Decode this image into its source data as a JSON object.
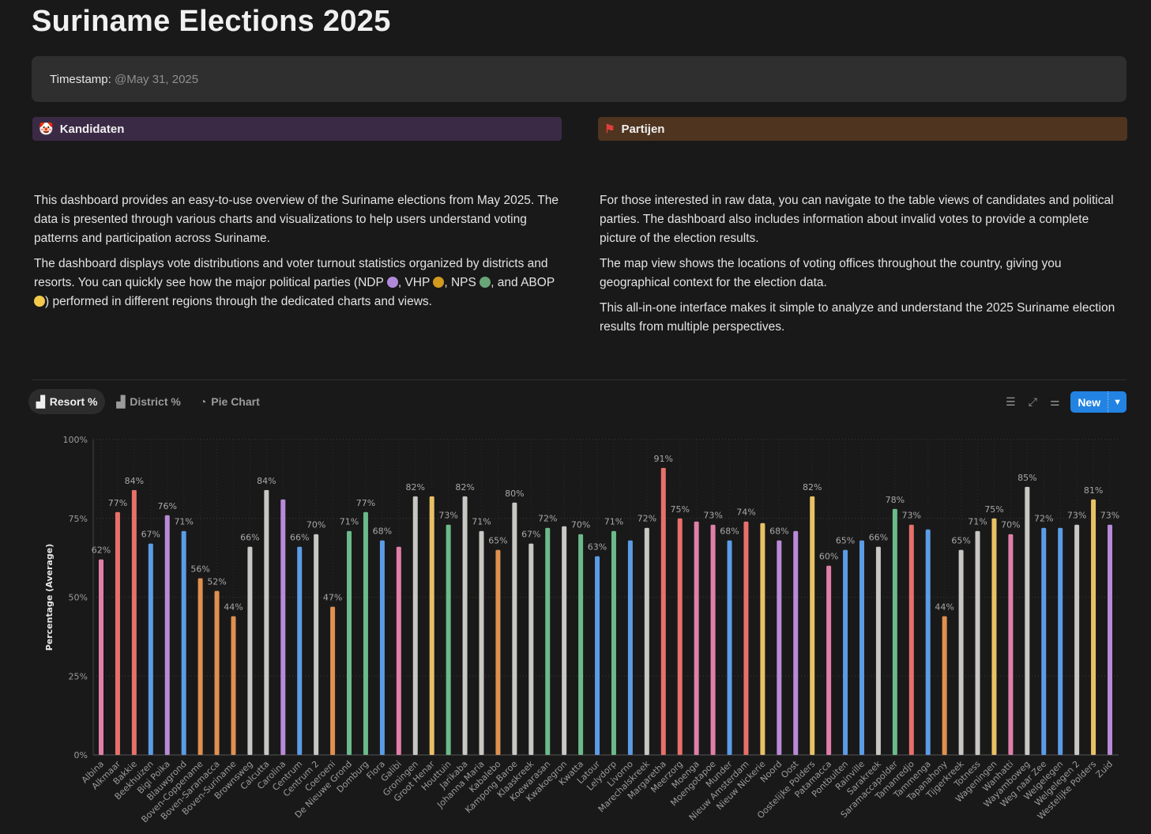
{
  "page": {
    "title": "Suriname Elections 2025"
  },
  "callout": {
    "label": "Timestamp:",
    "value": "@May 31, 2025"
  },
  "links": {
    "kandidaten": "Kandidaten",
    "partijen": "Partijen"
  },
  "left": {
    "p1": "This dashboard provides an easy-to-use overview of the Suriname elections from May 2025. The data is presented through various charts and visualizations to help users understand voting patterns and participation across Suriname.",
    "p2a": "The dashboard displays vote distributions and voter turnout statistics organized by districts and resorts. You can quickly see how the major political parties (NDP ",
    "p2b": ", VHP ",
    "p2c": ", NPS ",
    "p2d": ", and ABOP ",
    "p2e": ") performed in different regions through the dedicated charts and views."
  },
  "party_colors": {
    "NDP": "#b08ad8",
    "VHP": "#d29a1e",
    "NPS": "#6aa57a",
    "ABOP": "#f2c94c"
  },
  "right": {
    "p1": "For those interested in raw data, you can navigate to the table views of candidates and political parties. The dashboard also includes information about invalid votes to provide a complete picture of the election results.",
    "p2": "The map view shows the locations of voting offices throughout the country, giving you geographical context for the election data.",
    "p3": "This all-in-one interface makes it simple to analyze and understand the 2025 Suriname election results from multiple perspectives."
  },
  "tabs": [
    {
      "label": "Resort %",
      "icon": "bar-chart-icon"
    },
    {
      "label": "District %",
      "icon": "bar-chart-icon"
    },
    {
      "label": "Pie Chart",
      "icon": "pie-chart-icon"
    }
  ],
  "toolbar": {
    "new_label": "New"
  },
  "chart_data": {
    "type": "bar",
    "ylabel": "Percentage (Average)",
    "ylim": [
      0,
      100
    ],
    "yticks": [
      "0%",
      "25%",
      "50%",
      "75%",
      "100%"
    ],
    "grid": true,
    "categories": [
      "Albina",
      "Alkmaar",
      "Bakkie",
      "Beekhuizen",
      "Bigi Poika",
      "Blauwgrond",
      "Boven-Coppename",
      "Boven-Saramacca",
      "Boven-Suriname",
      "Brownsweg",
      "Calcutta",
      "Carolina",
      "Centrum",
      "Centrum 2",
      "Coeroeni",
      "De Nieuwe Grond",
      "Domburg",
      "Flora",
      "Galibi",
      "Groningen",
      "Groot Henar",
      "Houttuin",
      "Jarikaba",
      "Johanna Maria",
      "Kabalebo",
      "Kampong Baroe",
      "Klaaskreek",
      "Koewarasan",
      "Kwakoegron",
      "Kwatta",
      "Latour",
      "Lelydorp",
      "Livorno",
      "Marechalskreek",
      "Margaretha",
      "Meerzorg",
      "Moenga",
      "Moengotapoe",
      "Munder",
      "Nieuw Amsterdam",
      "Nieuw Nickerie",
      "Noord",
      "Oost",
      "Oostelijke Polders",
      "Patamacca",
      "Pontbuiten",
      "Rainville",
      "Sarakreek",
      "Saramaccapolder",
      "Tamanredjo",
      "Tammenga",
      "Tapanahony",
      "Tijgerkreek",
      "Totness",
      "Wageningen",
      "Wanhatti",
      "Wayamboweg",
      "Weg naar Zee",
      "Welgelegen",
      "Welgelegen 2",
      "Westelijke Polders",
      "Zuid"
    ],
    "values": [
      62,
      77,
      84,
      67,
      76,
      71,
      56,
      52,
      44,
      66,
      84,
      81,
      66,
      70,
      47,
      71,
      77,
      68,
      66,
      82,
      82,
      73,
      82,
      71,
      65,
      80,
      67,
      72,
      72.5,
      70,
      63,
      71,
      68,
      72,
      91,
      75,
      74,
      73,
      68,
      74,
      73.5,
      68,
      71,
      82,
      60,
      65,
      68,
      66,
      78,
      73,
      71.5,
      44,
      65,
      71,
      75,
      70,
      85,
      72,
      72,
      73,
      81,
      73
    ],
    "data_labels": [
      "62%",
      "77%",
      "84%",
      "67%",
      "76%",
      "71%",
      "56%",
      "52%",
      "44%",
      "66%",
      "84%",
      "",
      "66%",
      "70%",
      "47%",
      "71%",
      "77%",
      "68%",
      "",
      "82%",
      "",
      "73%",
      "82%",
      "71%",
      "65%",
      "80%",
      "67%",
      "72%",
      "",
      "70%",
      "63%",
      "71%",
      "",
      "72%",
      "91%",
      "75%",
      "",
      "73%",
      "68%",
      "74%",
      "",
      "68%",
      "",
      "82%",
      "60%",
      "65%",
      "",
      "66%",
      "78%",
      "73%",
      "",
      "44%",
      "65%",
      "71%",
      "75%",
      "70%",
      "85%",
      "72%",
      "",
      "73%",
      "81%",
      "73%"
    ],
    "colors": [
      "pink",
      "red",
      "red",
      "blue",
      "purple",
      "blue",
      "orange",
      "orange",
      "orange",
      "gray",
      "gray",
      "purple",
      "blue",
      "gray",
      "orange",
      "green",
      "green",
      "blue",
      "pink",
      "gray",
      "yellow",
      "green",
      "gray",
      "gray",
      "orange",
      "gray",
      "gray",
      "green",
      "gray",
      "green",
      "blue",
      "green",
      "blue",
      "gray",
      "red",
      "red",
      "pink",
      "pink",
      "blue",
      "red",
      "yellow",
      "purple",
      "purple",
      "yellow",
      "pink",
      "blue",
      "blue",
      "gray",
      "green",
      "red",
      "blue",
      "orange",
      "gray",
      "gray",
      "yellow",
      "pink",
      "gray",
      "blue",
      "blue",
      "gray",
      "yellow",
      "purple"
    ],
    "palette": {
      "pink": "#e07fa8",
      "red": "#e8706a",
      "blue": "#5b9ce6",
      "purple": "#b98ad8",
      "orange": "#e0904f",
      "gray": "#c8c7c4",
      "green": "#6bba8a",
      "yellow": "#e9c165"
    }
  }
}
